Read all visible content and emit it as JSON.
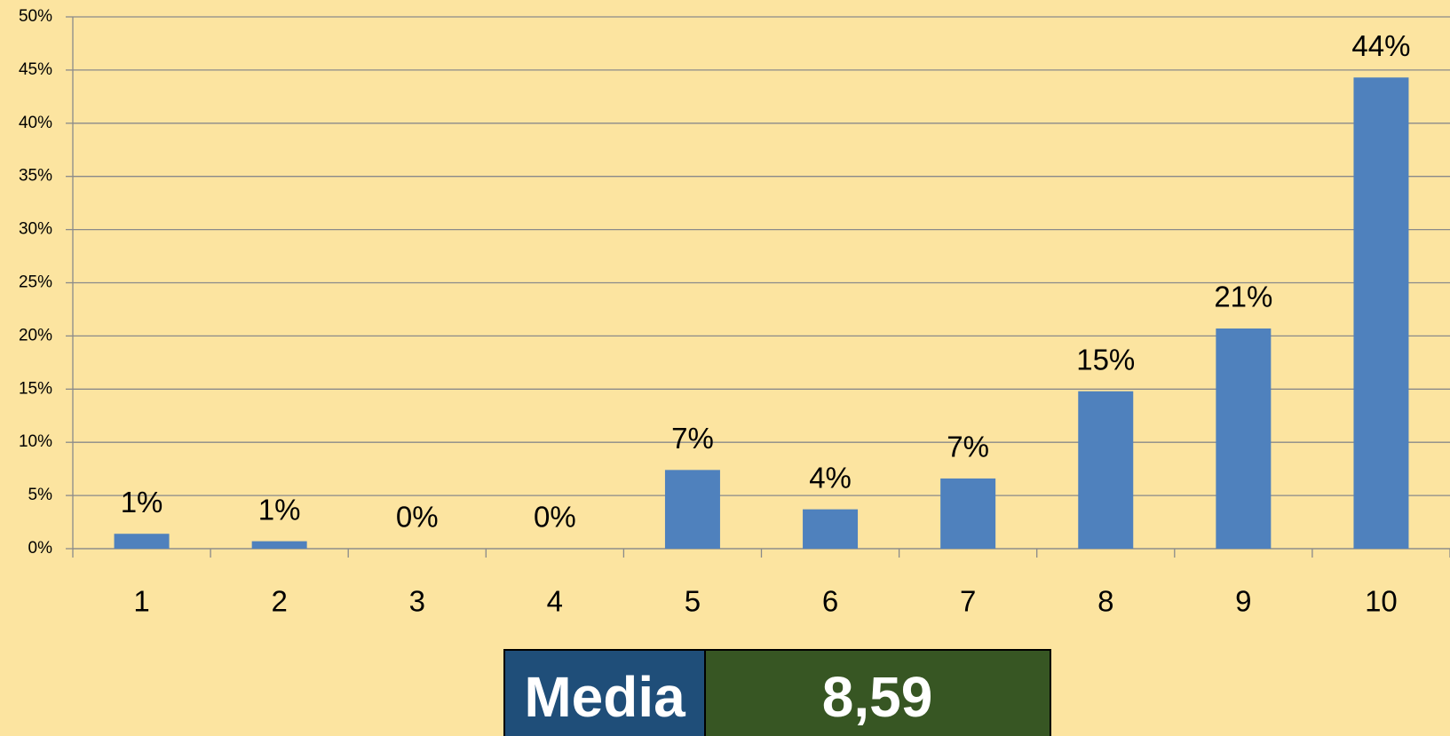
{
  "chart_data": {
    "type": "bar",
    "categories": [
      "1",
      "2",
      "3",
      "4",
      "5",
      "6",
      "7",
      "8",
      "9",
      "10"
    ],
    "values": [
      1.4,
      0.7,
      0,
      0,
      7.4,
      3.7,
      6.6,
      14.8,
      20.7,
      44.3
    ],
    "value_labels": [
      "1%",
      "1%",
      "0%",
      "0%",
      "7%",
      "4%",
      "7%",
      "15%",
      "21%",
      "44%"
    ],
    "color": "#4f81bd",
    "ylim": [
      0,
      50
    ],
    "yticks": [
      {
        "value": 0,
        "label": "0%"
      },
      {
        "value": 5,
        "label": "5%"
      },
      {
        "value": 10,
        "label": "10%"
      },
      {
        "value": 15,
        "label": "15%"
      },
      {
        "value": 20,
        "label": "20%"
      },
      {
        "value": 25,
        "label": "25%"
      },
      {
        "value": 30,
        "label": "30%"
      },
      {
        "value": 35,
        "label": "35%"
      },
      {
        "value": 40,
        "label": "40%"
      },
      {
        "value": 45,
        "label": "45%"
      },
      {
        "value": 50,
        "label": "50%"
      }
    ],
    "grid": true,
    "media_label": "Media",
    "media_value": "8,59"
  }
}
